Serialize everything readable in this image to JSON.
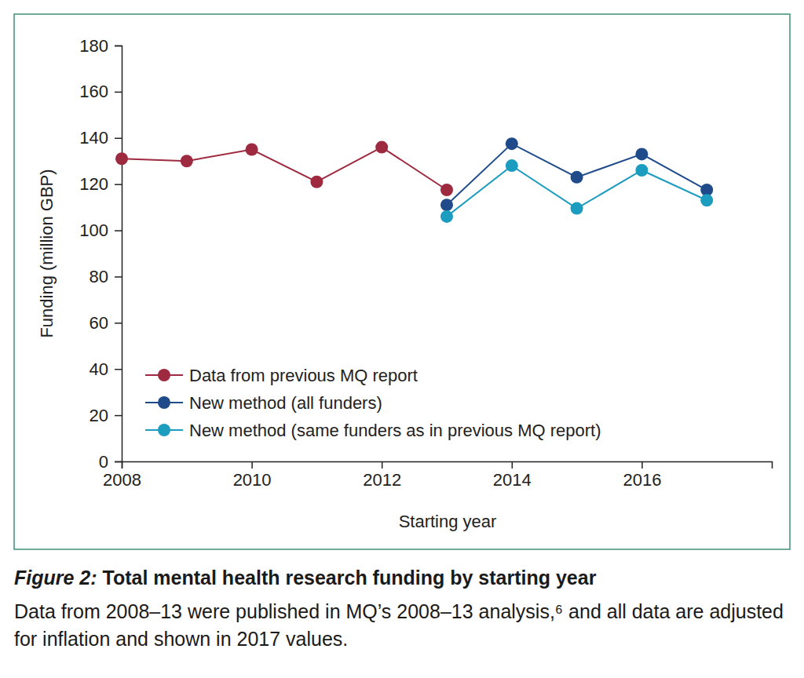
{
  "chart_data": {
    "type": "line",
    "title": "Figure 2: Total mental health research funding by starting year",
    "subtitle": "Data from 2008–13 were published in MQ’s 2008–13 analysis,⁶ and all data are adjusted for inflation and shown in 2017 values.",
    "x_label": "Starting year",
    "y_label": "Funding (million GBP)",
    "x": [
      2008,
      2009,
      2010,
      2011,
      2012,
      2013,
      2014,
      2015,
      2016,
      2017
    ],
    "series": [
      {
        "name": "Data from previous MQ report",
        "color": "#9e2a3f",
        "marker": "circle",
        "values": [
          131,
          130,
          135,
          121,
          136,
          117.5,
          null,
          null,
          null,
          null
        ]
      },
      {
        "name": "New method (all funders)",
        "color": "#1f4b8a",
        "marker": "circle",
        "values": [
          null,
          null,
          null,
          null,
          null,
          111,
          137.5,
          123,
          133,
          117.5
        ]
      },
      {
        "name": "New method (same funders as in previous MQ report)",
        "color": "#1c9cbf",
        "marker": "circle",
        "values": [
          null,
          null,
          null,
          null,
          null,
          106,
          128,
          109.5,
          126,
          113
        ]
      }
    ],
    "xlim": [
      2008,
      2018
    ],
    "xticks": [
      2008,
      2010,
      2012,
      2014,
      2016
    ],
    "ylim": [
      0,
      180
    ],
    "yticks": [
      0,
      20,
      40,
      60,
      80,
      100,
      120,
      140,
      160,
      180
    ],
    "grid": false,
    "legend": "lower left"
  }
}
